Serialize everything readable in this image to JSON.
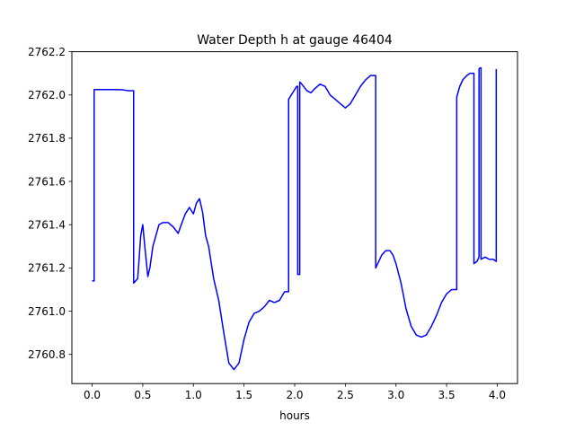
{
  "chart_data": {
    "type": "line",
    "title": "Water Depth h at gauge 46404",
    "xlabel": "hours",
    "ylabel": "",
    "xlim": [
      -0.2,
      4.2
    ],
    "ylim": [
      2760.665,
      2762.2
    ],
    "grid": false,
    "xticks": [
      0.0,
      0.5,
      1.0,
      1.5,
      2.0,
      2.5,
      3.0,
      3.5,
      4.0
    ],
    "xtick_labels": [
      "0.0",
      "0.5",
      "1.0",
      "1.5",
      "2.0",
      "2.5",
      "3.0",
      "3.5",
      "4.0"
    ],
    "yticks": [
      2760.8,
      2761.0,
      2761.2,
      2761.4,
      2761.6,
      2761.8,
      2762.0,
      2762.2
    ],
    "ytick_labels": [
      "2760.8",
      "2761.0",
      "2761.2",
      "2761.4",
      "2761.6",
      "2761.8",
      "2762.0",
      "2762.2"
    ],
    "series": [
      {
        "color": "#0000ff",
        "x": [
          0.0,
          0.02,
          0.02,
          0.1,
          0.2,
          0.3,
          0.35,
          0.4,
          0.41,
          0.41,
          0.45,
          0.48,
          0.5,
          0.52,
          0.55,
          0.57,
          0.6,
          0.63,
          0.66,
          0.7,
          0.75,
          0.8,
          0.85,
          0.88,
          0.92,
          0.96,
          1.0,
          1.03,
          1.06,
          1.09,
          1.12,
          1.15,
          1.2,
          1.25,
          1.3,
          1.35,
          1.4,
          1.45,
          1.5,
          1.55,
          1.6,
          1.65,
          1.7,
          1.75,
          1.8,
          1.85,
          1.9,
          1.94,
          1.94,
          1.98,
          2.02,
          2.03,
          2.03,
          2.05,
          2.05,
          2.07,
          2.12,
          2.16,
          2.2,
          2.25,
          2.3,
          2.35,
          2.4,
          2.45,
          2.5,
          2.55,
          2.6,
          2.65,
          2.7,
          2.75,
          2.8,
          2.8,
          2.83,
          2.86,
          2.9,
          2.94,
          2.97,
          3.0,
          3.05,
          3.1,
          3.15,
          3.2,
          3.25,
          3.3,
          3.35,
          3.4,
          3.45,
          3.5,
          3.55,
          3.6,
          3.6,
          3.63,
          3.66,
          3.7,
          3.73,
          3.75,
          3.77,
          3.77,
          3.8,
          3.82,
          3.82,
          3.83,
          3.84,
          3.84,
          3.88,
          3.92,
          3.96,
          3.99,
          3.99
        ],
        "y": [
          2761.14,
          2761.14,
          2762.025,
          2762.025,
          2762.025,
          2762.024,
          2762.02,
          2762.02,
          2762.02,
          2761.13,
          2761.15,
          2761.35,
          2761.4,
          2761.3,
          2761.16,
          2761.2,
          2761.3,
          2761.35,
          2761.4,
          2761.41,
          2761.41,
          2761.39,
          2761.36,
          2761.4,
          2761.45,
          2761.48,
          2761.45,
          2761.5,
          2761.52,
          2761.46,
          2761.35,
          2761.3,
          2761.15,
          2761.05,
          2760.9,
          2760.76,
          2760.73,
          2760.76,
          2760.87,
          2760.95,
          2760.99,
          2761.0,
          2761.02,
          2761.05,
          2761.04,
          2761.05,
          2761.09,
          2761.09,
          2761.98,
          2762.01,
          2762.04,
          2762.04,
          2761.17,
          2761.17,
          2762.06,
          2762.05,
          2762.02,
          2762.01,
          2762.03,
          2762.05,
          2762.04,
          2762.0,
          2761.98,
          2761.96,
          2761.94,
          2761.96,
          2762.0,
          2762.04,
          2762.07,
          2762.09,
          2762.09,
          2761.2,
          2761.23,
          2761.26,
          2761.28,
          2761.28,
          2761.26,
          2761.22,
          2761.13,
          2761.01,
          2760.93,
          2760.89,
          2760.88,
          2760.89,
          2760.93,
          2760.98,
          2761.04,
          2761.08,
          2761.1,
          2761.1,
          2761.99,
          2762.04,
          2762.07,
          2762.09,
          2762.1,
          2762.1,
          2762.1,
          2761.22,
          2761.23,
          2761.25,
          2762.12,
          2762.125,
          2762.125,
          2761.24,
          2761.25,
          2761.24,
          2761.24,
          2761.23,
          2762.12
        ]
      }
    ]
  }
}
